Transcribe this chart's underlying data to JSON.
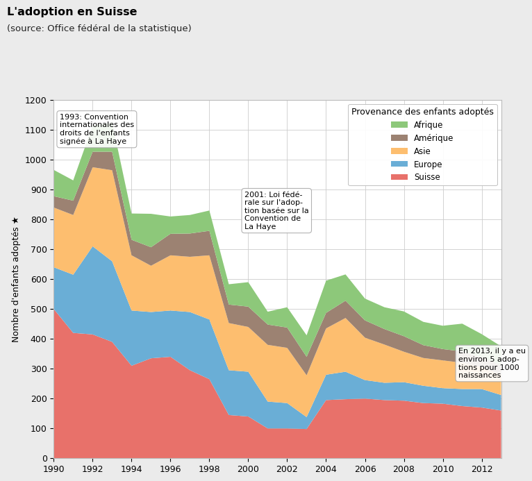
{
  "title": "L'adoption en Suisse",
  "subtitle": "(source: Office fédéral de la statistique)",
  "ylabel": "Nombre d'enfants adoptés ★",
  "years": [
    1990,
    1991,
    1992,
    1993,
    1994,
    1995,
    1996,
    1997,
    1998,
    1999,
    2000,
    2001,
    2002,
    2003,
    2004,
    2005,
    2006,
    2007,
    2008,
    2009,
    2010,
    2011,
    2012,
    2013
  ],
  "suisse": [
    500,
    420,
    415,
    390,
    310,
    335,
    340,
    295,
    265,
    145,
    140,
    100,
    100,
    98,
    195,
    198,
    200,
    195,
    193,
    185,
    183,
    175,
    170,
    160
  ],
  "europe": [
    140,
    195,
    295,
    270,
    185,
    155,
    155,
    195,
    200,
    150,
    150,
    90,
    85,
    40,
    85,
    92,
    62,
    58,
    62,
    58,
    52,
    57,
    62,
    52
  ],
  "asie": [
    200,
    200,
    265,
    305,
    185,
    155,
    185,
    185,
    215,
    158,
    150,
    190,
    185,
    140,
    155,
    180,
    142,
    128,
    102,
    93,
    93,
    88,
    73,
    68
  ],
  "amerique": [
    38,
    48,
    52,
    62,
    52,
    62,
    72,
    78,
    82,
    62,
    68,
    68,
    68,
    62,
    52,
    58,
    58,
    52,
    52,
    43,
    38,
    38,
    33,
    33
  ],
  "afrique": [
    88,
    68,
    88,
    98,
    88,
    112,
    58,
    62,
    68,
    68,
    82,
    43,
    68,
    72,
    108,
    88,
    73,
    73,
    83,
    78,
    78,
    93,
    78,
    62
  ],
  "colors": {
    "suisse": "#E8716A",
    "europe": "#6AAED6",
    "asie": "#FDBE6F",
    "amerique": "#9C8272",
    "afrique": "#8DC87A"
  },
  "ylim": [
    0,
    1200
  ],
  "legend_title": "Provenance des enfants adoptés",
  "legend_labels": [
    "Afrique",
    "Amérique",
    "Asie",
    "Europe",
    "Suisse"
  ],
  "ann1_text": "1993: Convention\ninternationales des\ndroits de l'enfants\nsignée à La Haye",
  "ann2_text": "2001: Loi fédé-\nrale sur l'adop-\ntion basée sur la\nConvention de\nLa Haye",
  "ann3_text": "En 2013, il y a eu\nenviron 5 adop-\ntions pour 1000\nnaissances",
  "bg_color": "#ebebeb",
  "plot_bg": "#ffffff"
}
